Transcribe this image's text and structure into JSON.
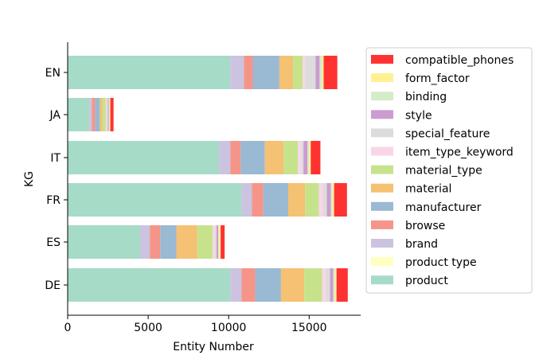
{
  "chart_data": {
    "type": "bar",
    "orientation": "horizontal",
    "stacked": true,
    "title": "",
    "xlabel": "Entity Number",
    "ylabel": "KG",
    "xlim": [
      0,
      18200
    ],
    "xticks": [
      0,
      5000,
      10000,
      15000
    ],
    "categories": [
      "EN",
      "JA",
      "IT",
      "FR",
      "ES",
      "DE"
    ],
    "grid": false,
    "legend_position": "right",
    "series": [
      {
        "name": "product",
        "color": "#a6dbc8",
        "values": [
          10100,
          1350,
          9400,
          10800,
          4500,
          10100
        ]
      },
      {
        "name": "product type",
        "color": "#ffffbf",
        "values": [
          0,
          0,
          0,
          0,
          0,
          0
        ]
      },
      {
        "name": "brand",
        "color": "#cbc3e0",
        "values": [
          850,
          150,
          700,
          650,
          600,
          700
        ]
      },
      {
        "name": "browse",
        "color": "#f5958a",
        "values": [
          550,
          200,
          650,
          700,
          650,
          850
        ]
      },
      {
        "name": "manufacturer",
        "color": "#9ab9d2",
        "values": [
          1650,
          300,
          1500,
          1550,
          1000,
          1600
        ]
      },
      {
        "name": "material",
        "color": "#f5c172",
        "values": [
          850,
          150,
          1150,
          1050,
          1300,
          1450
        ]
      },
      {
        "name": "material_type",
        "color": "#c6e38b",
        "values": [
          600,
          200,
          900,
          850,
          950,
          1100
        ]
      },
      {
        "name": "item_type_keyword",
        "color": "#f8d6e8",
        "values": [
          150,
          50,
          200,
          250,
          150,
          250
        ]
      },
      {
        "name": "special_feature",
        "color": "#dcdcdc",
        "values": [
          650,
          100,
          150,
          250,
          100,
          250
        ]
      },
      {
        "name": "style",
        "color": "#cc9bd0",
        "values": [
          250,
          50,
          250,
          250,
          100,
          200
        ]
      },
      {
        "name": "binding",
        "color": "#d4edc7",
        "values": [
          150,
          50,
          100,
          100,
          50,
          100
        ]
      },
      {
        "name": "form_factor",
        "color": "#fff094",
        "values": [
          100,
          50,
          100,
          100,
          100,
          100
        ]
      },
      {
        "name": "compatible_phones",
        "color": "#ff3232",
        "values": [
          850,
          200,
          600,
          800,
          250,
          700
        ]
      }
    ],
    "legend_order": [
      "compatible_phones",
      "form_factor",
      "binding",
      "style",
      "special_feature",
      "item_type_keyword",
      "material_type",
      "material",
      "manufacturer",
      "browse",
      "brand",
      "product type",
      "product"
    ]
  }
}
